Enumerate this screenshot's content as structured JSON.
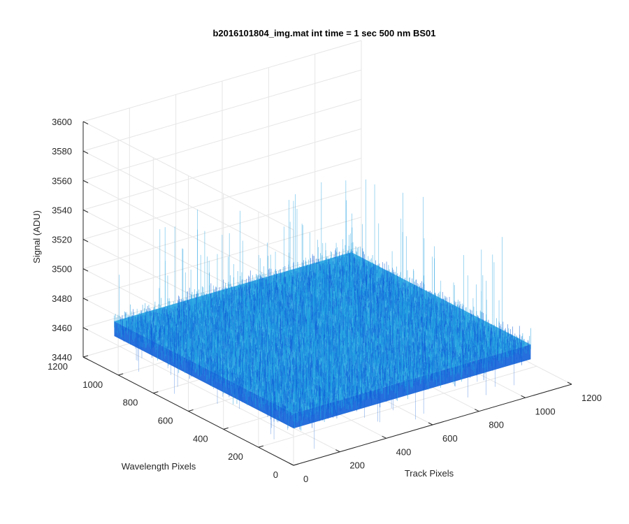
{
  "chart_data": {
    "type": "surface",
    "title": "b2016101804_img.mat int time = 1 sec  500 nm BS01",
    "xlabel": "Track Pixels",
    "ylabel": "Wavelength Pixels",
    "zlabel": "Signal (ADU)",
    "xlim": [
      0,
      1200
    ],
    "ylim": [
      0,
      1200
    ],
    "zlim": [
      3440,
      3600
    ],
    "x_ticks": [
      "0",
      "200",
      "400",
      "600",
      "800",
      "1000",
      "1200"
    ],
    "y_ticks": [
      "0",
      "200",
      "400",
      "600",
      "800",
      "1000",
      "1200"
    ],
    "z_ticks": [
      "3440",
      "3460",
      "3480",
      "3500",
      "3520",
      "3540",
      "3560",
      "3580",
      "3600"
    ],
    "data_extent": {
      "x": [
        1,
        1024
      ],
      "y": [
        1,
        1024
      ]
    },
    "signal_mean": 3475,
    "signal_range": [
      3445,
      3540
    ],
    "grid": true,
    "colormap": "parula",
    "colors": {
      "surface_light": "#1fa0e0",
      "surface_dark": "#0f5fd8",
      "grid": "#e6e6e6",
      "axis": "#262626"
    }
  }
}
